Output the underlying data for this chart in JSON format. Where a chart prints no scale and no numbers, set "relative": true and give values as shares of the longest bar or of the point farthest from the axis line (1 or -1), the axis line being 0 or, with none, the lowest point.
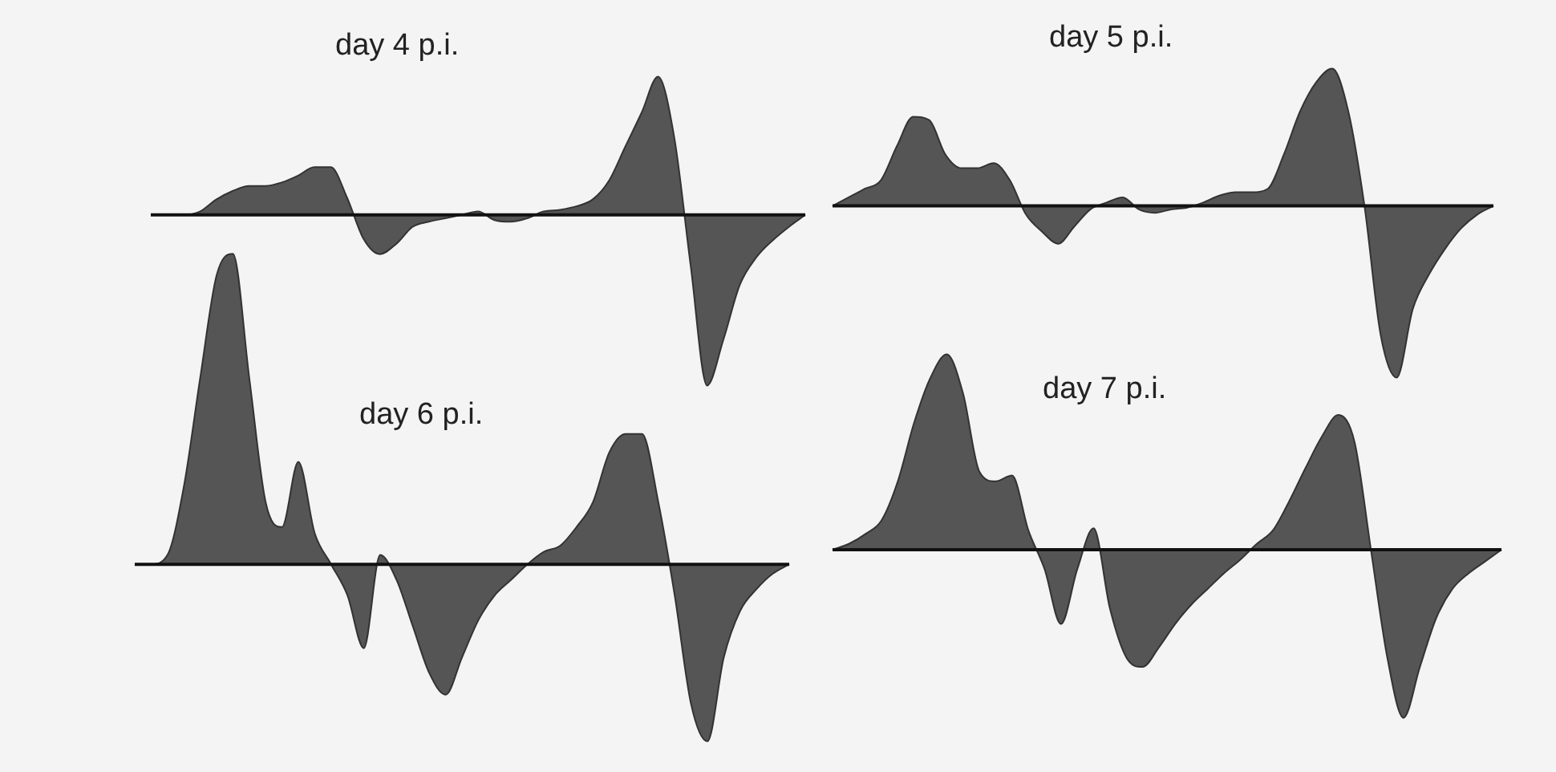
{
  "chart_data": [
    {
      "type": "area",
      "title": "day 4 p.i.",
      "relative": true,
      "color": "#555555",
      "categories": [
        null,
        null,
        null,
        null,
        null,
        null,
        null,
        null,
        null,
        null,
        null,
        null,
        null,
        null,
        null,
        null,
        null,
        null,
        null,
        null,
        null,
        null,
        null,
        null,
        null,
        null,
        null,
        null,
        null,
        null,
        null,
        null,
        null,
        null,
        null,
        null,
        null,
        null,
        null,
        null,
        null
      ],
      "values": [
        0,
        0,
        0,
        0.02,
        0.09,
        0.14,
        0.17,
        0.17,
        0.19,
        0.23,
        0.28,
        0.28,
        0.1,
        -0.14,
        -0.23,
        -0.17,
        -0.07,
        -0.04,
        -0.02,
        0,
        0.02,
        -0.03,
        -0.04,
        -0.02,
        0.02,
        0.03,
        0.05,
        0.09,
        0.2,
        0.4,
        0.6,
        0.81,
        0.45,
        -0.3,
        -1,
        -0.73,
        -0.41,
        -0.25,
        -0.15,
        -0.07,
        0
      ]
    },
    {
      "type": "area",
      "title": "day 5 p.i.",
      "relative": true,
      "color": "#555555",
      "categories": [
        null,
        null,
        null,
        null,
        null,
        null,
        null,
        null,
        null,
        null,
        null,
        null,
        null,
        null,
        null,
        null,
        null,
        null,
        null,
        null,
        null,
        null,
        null,
        null,
        null,
        null,
        null,
        null,
        null,
        null,
        null,
        null,
        null,
        null,
        null,
        null,
        null,
        null,
        null,
        null,
        null,
        null
      ],
      "values": [
        0,
        0.05,
        0.1,
        0.15,
        0.35,
        0.52,
        0.5,
        0.3,
        0.22,
        0.22,
        0.25,
        0.15,
        -0.05,
        -0.15,
        -0.22,
        -0.12,
        -0.02,
        0.02,
        0.05,
        -0.02,
        -0.04,
        -0.02,
        -0.01,
        0.02,
        0.06,
        0.08,
        0.08,
        0.1,
        0.3,
        0.55,
        0.72,
        0.8,
        0.55,
        0,
        -0.75,
        -1,
        -0.6,
        -0.4,
        -0.25,
        -0.13,
        -0.05,
        0
      ]
    },
    {
      "type": "area",
      "title": "day 6 p.i.",
      "relative": true,
      "color": "#555555",
      "categories": [
        null,
        null,
        null,
        null,
        null,
        null,
        null,
        null,
        null,
        null,
        null,
        null,
        null,
        null,
        null,
        null,
        null,
        null,
        null,
        null,
        null,
        null,
        null,
        null,
        null,
        null,
        null,
        null,
        null,
        null,
        null,
        null,
        null,
        null,
        null,
        null,
        null,
        null,
        null,
        null,
        null
      ],
      "values": [
        0,
        0,
        0.03,
        0.25,
        0.6,
        0.93,
        1,
        0.6,
        0.2,
        0.12,
        0.33,
        0.1,
        0,
        -0.1,
        -0.27,
        0.03,
        -0.05,
        -0.2,
        -0.35,
        -0.42,
        -0.3,
        -0.18,
        -0.1,
        -0.05,
        0,
        0.04,
        0.06,
        0.12,
        0.2,
        0.36,
        0.42,
        0.42,
        0.2,
        -0.1,
        -0.45,
        -0.57,
        -0.3,
        -0.15,
        -0.08,
        -0.03,
        0
      ]
    },
    {
      "type": "area",
      "title": "day 7 p.i.",
      "relative": true,
      "color": "#555555",
      "categories": [
        null,
        null,
        null,
        null,
        null,
        null,
        null,
        null,
        null,
        null,
        null,
        null,
        null,
        null,
        null,
        null,
        null,
        null,
        null,
        null,
        null,
        null,
        null,
        null,
        null,
        null,
        null,
        null,
        null,
        null,
        null,
        null,
        null,
        null,
        null,
        null,
        null,
        null,
        null,
        null,
        null,
        null
      ],
      "values": [
        0,
        0.03,
        0.08,
        0.15,
        0.35,
        0.65,
        0.88,
        1,
        0.8,
        0.4,
        0.35,
        0.38,
        0.1,
        -0.1,
        -0.38,
        -0.1,
        0.11,
        -0.3,
        -0.55,
        -0.6,
        -0.5,
        -0.38,
        -0.28,
        -0.2,
        -0.12,
        -0.05,
        0.03,
        0.1,
        0.25,
        0.42,
        0.58,
        0.69,
        0.55,
        0,
        -0.55,
        -0.86,
        -0.6,
        -0.35,
        -0.2,
        -0.12,
        -0.06,
        0
      ]
    }
  ]
}
